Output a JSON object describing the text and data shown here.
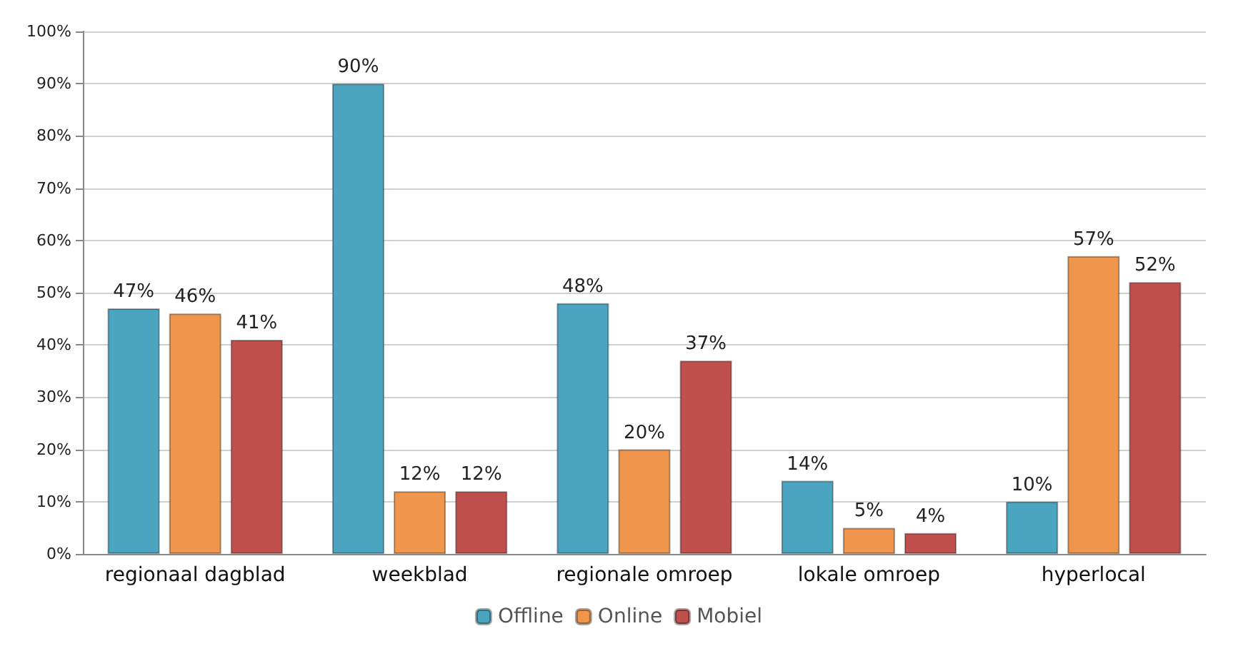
{
  "chart_data": {
    "type": "bar",
    "categories": [
      "regionaal dagblad",
      "weekblad",
      "regionale omroep",
      "lokale omroep",
      "hyperlocal"
    ],
    "series": [
      {
        "name": "Offline",
        "color": "#4ba5c1",
        "values": [
          47,
          90,
          48,
          14,
          10
        ],
        "value_labels": [
          "47%",
          "90%",
          "48%",
          "14%",
          "10%"
        ]
      },
      {
        "name": "Online",
        "color": "#f0964c",
        "values": [
          46,
          12,
          20,
          5,
          57
        ],
        "value_labels": [
          "46%",
          "12%",
          "20%",
          "5%",
          "57%"
        ]
      },
      {
        "name": "Mobiel",
        "color": "#c0504d",
        "values": [
          41,
          12,
          37,
          4,
          52
        ],
        "value_labels": [
          "41%",
          "12%",
          "37%",
          "4%",
          "52%"
        ]
      }
    ],
    "ylim": [
      0,
      100
    ],
    "yticks": [
      {
        "value": 0,
        "label": "0%"
      },
      {
        "value": 10,
        "label": "10%"
      },
      {
        "value": 20,
        "label": "20%"
      },
      {
        "value": 30,
        "label": "30%"
      },
      {
        "value": 40,
        "label": "40%"
      },
      {
        "value": 50,
        "label": "50%"
      },
      {
        "value": 60,
        "label": "60%"
      },
      {
        "value": 70,
        "label": "70%"
      },
      {
        "value": 80,
        "label": "80%"
      },
      {
        "value": 90,
        "label": "90%"
      },
      {
        "value": 100,
        "label": "100%"
      }
    ],
    "grid": "y",
    "legend": "bottom"
  }
}
